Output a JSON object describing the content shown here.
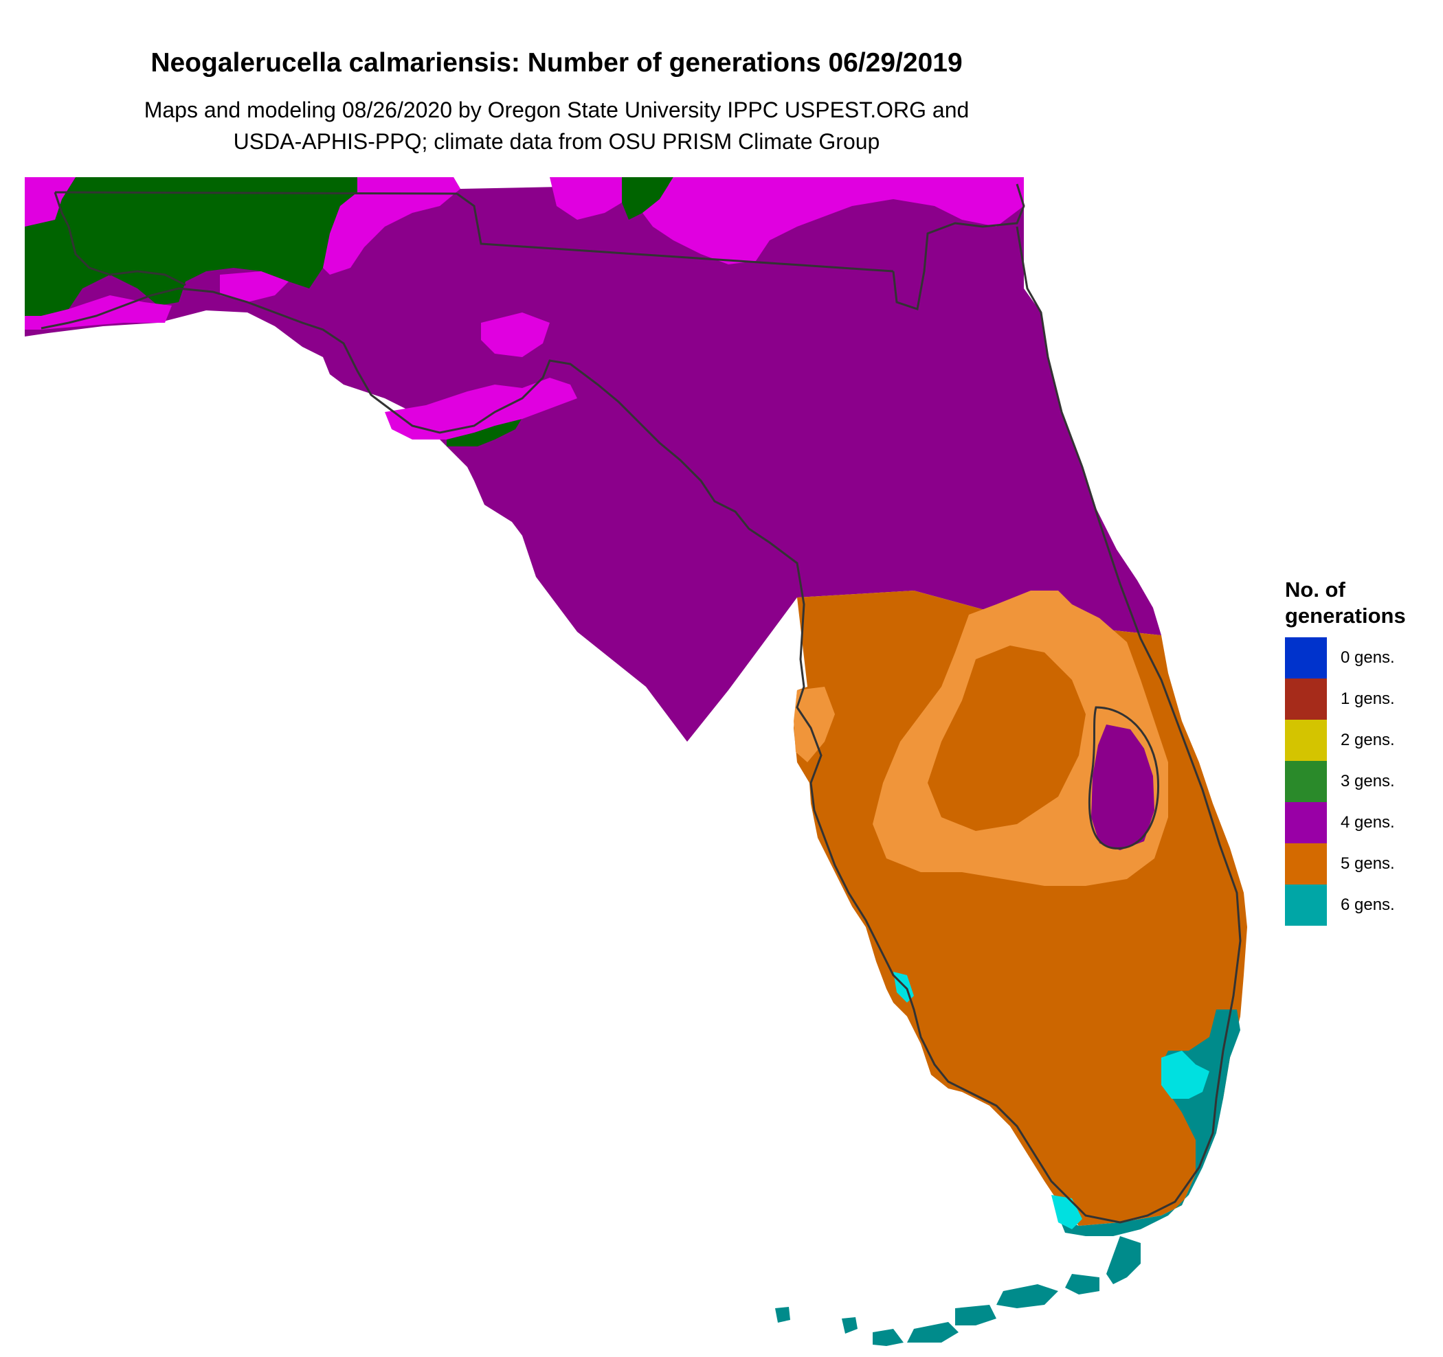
{
  "title": "Neogalerucella calmariensis: Number of generations 06/29/2019",
  "subtitle_line1": "Maps and modeling 08/26/2020 by Oregon State University IPPC USPEST.ORG and",
  "subtitle_line2": "USDA-APHIS-PPQ; climate data from OSU PRISM Climate Group",
  "legend": {
    "title_line1": "No. of",
    "title_line2": "generations",
    "items": [
      {
        "label": "0 gens.",
        "color": "#0033cc"
      },
      {
        "label": "1 gens.",
        "color": "#a62b1a"
      },
      {
        "label": "2 gens.",
        "color": "#d4c400"
      },
      {
        "label": "3 gens.",
        "color": "#2a8a2a"
      },
      {
        "label": "4 gens.",
        "color": "#9900a6"
      },
      {
        "label": "5 gens.",
        "color": "#d46a00"
      },
      {
        "label": "6 gens.",
        "color": "#00a6a6"
      }
    ]
  },
  "map_colors": {
    "gens_3_dark": "#006400",
    "gens_4": "#8b008b",
    "gens_4_light": "#e000e0",
    "gens_5": "#cc6600",
    "gens_5_light": "#f0953a",
    "gens_6": "#008b8b",
    "gens_6_light": "#00e0e0",
    "outline": "#333333"
  }
}
